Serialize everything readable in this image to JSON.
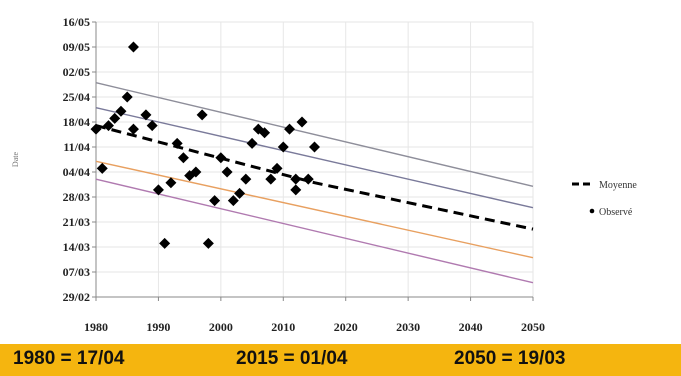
{
  "chart_data": {
    "type": "scatter",
    "title": "",
    "xlabel": "",
    "ylabel": "Date",
    "x_ticks": [
      "1980",
      "1990",
      "2000",
      "2010",
      "2020",
      "2030",
      "2040",
      "2050"
    ],
    "xlim": [
      1980,
      2050
    ],
    "y_ticks": [
      "29/02",
      "07/03",
      "14/03",
      "21/03",
      "28/03",
      "04/04",
      "11/04",
      "18/04",
      "25/04",
      "02/05",
      "09/05",
      "16/05"
    ],
    "ylim": [
      "29/02",
      "16/05"
    ],
    "grid": true,
    "legend_position": "right",
    "series": [
      {
        "name": "Observé",
        "kind": "points",
        "color": "#000000",
        "points": [
          [
            1980,
            "16/04"
          ],
          [
            1981,
            "05/04"
          ],
          [
            1982,
            "17/04"
          ],
          [
            1983,
            "19/04"
          ],
          [
            1984,
            "21/04"
          ],
          [
            1985,
            "25/04"
          ],
          [
            1986,
            "16/04"
          ],
          [
            1986,
            "09/05"
          ],
          [
            1988,
            "20/04"
          ],
          [
            1989,
            "17/04"
          ],
          [
            1990,
            "30/03"
          ],
          [
            1991,
            "15/03"
          ],
          [
            1992,
            "01/04"
          ],
          [
            1993,
            "12/04"
          ],
          [
            1994,
            "08/04"
          ],
          [
            1995,
            "03/04"
          ],
          [
            1996,
            "04/04"
          ],
          [
            1997,
            "20/04"
          ],
          [
            1998,
            "15/03"
          ],
          [
            1999,
            "27/03"
          ],
          [
            2000,
            "08/04"
          ],
          [
            2001,
            "04/04"
          ],
          [
            2002,
            "27/03"
          ],
          [
            2003,
            "29/03"
          ],
          [
            2004,
            "02/04"
          ],
          [
            2005,
            "12/04"
          ],
          [
            2006,
            "16/04"
          ],
          [
            2007,
            "15/04"
          ],
          [
            2008,
            "02/04"
          ],
          [
            2009,
            "05/04"
          ],
          [
            2010,
            "11/04"
          ],
          [
            2011,
            "16/04"
          ],
          [
            2012,
            "30/03"
          ],
          [
            2012,
            "02/04"
          ],
          [
            2013,
            "18/04"
          ],
          [
            2014,
            "02/04"
          ],
          [
            2015,
            "11/04"
          ]
        ]
      },
      {
        "name": "Moyenne",
        "kind": "line",
        "style": "dashed",
        "color": "#000000",
        "x": [
          1980,
          2015,
          2050
        ],
        "y": [
          "17/04",
          "01/04",
          "19/03"
        ]
      },
      {
        "name": "",
        "kind": "line",
        "color": "#8e8e9a",
        "x": [
          1980,
          2050
        ],
        "y": [
          "29/04",
          "31/03"
        ]
      },
      {
        "name": "",
        "kind": "line",
        "color": "#7a7a9a",
        "x": [
          1980,
          2050
        ],
        "y": [
          "22/04",
          "25/03"
        ]
      },
      {
        "name": "",
        "kind": "line",
        "color": "#e8a060",
        "x": [
          1980,
          2050
        ],
        "y": [
          "07/04",
          "11/03"
        ]
      },
      {
        "name": "",
        "kind": "line",
        "color": "#b07ab0",
        "x": [
          1980,
          2050
        ],
        "y": [
          "02/04",
          "04/03"
        ]
      }
    ],
    "legend": [
      {
        "label": "Moyenne",
        "symbol": "dashed-line"
      },
      {
        "label": "Observé",
        "symbol": "dot"
      }
    ]
  },
  "banner": {
    "color": "#f5b50f",
    "items": [
      "1980 = 17/04",
      "2015 = 01/04",
      "2050 = 19/03"
    ]
  }
}
